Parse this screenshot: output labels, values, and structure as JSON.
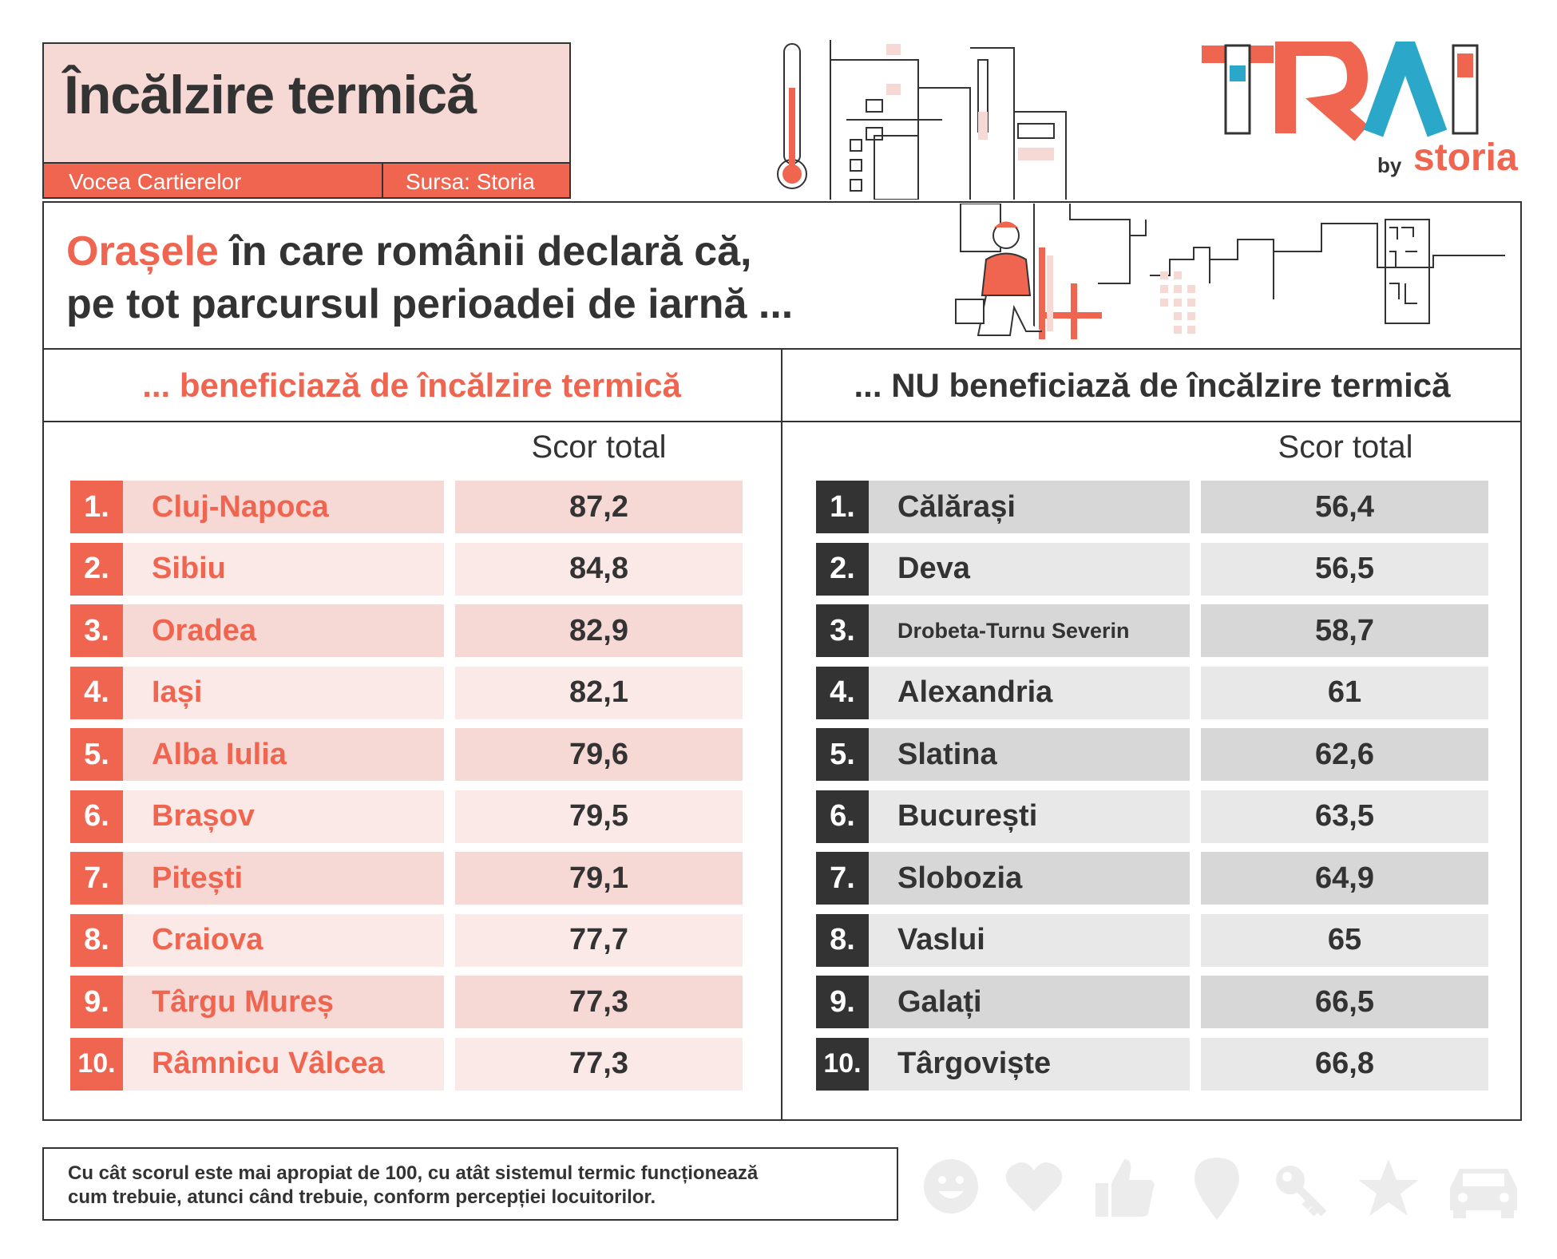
{
  "header": {
    "title": "Încălzire termică",
    "tag_left": "Vocea Cartierelor",
    "tag_right": "Sursa: Storia"
  },
  "logo": {
    "wordmark": "TRAI",
    "by": "by",
    "brand": "storia"
  },
  "headline": {
    "highlight": "Orașele",
    "line1_rest": " în care românii declară că,",
    "line2": "pe tot parcursul perioadei de iarnă ..."
  },
  "left_column": {
    "heading": "... beneficiază de încălzire termică",
    "score_header": "Scor total",
    "rows": [
      {
        "rank": "1.",
        "city": "Cluj-Napoca",
        "score": "87,2"
      },
      {
        "rank": "2.",
        "city": "Sibiu",
        "score": "84,8"
      },
      {
        "rank": "3.",
        "city": "Oradea",
        "score": "82,9"
      },
      {
        "rank": "4.",
        "city": "Iași",
        "score": "82,1"
      },
      {
        "rank": "5.",
        "city": "Alba Iulia",
        "score": "79,6"
      },
      {
        "rank": "6.",
        "city": "Brașov",
        "score": "79,5"
      },
      {
        "rank": "7.",
        "city": "Pitești",
        "score": "79,1"
      },
      {
        "rank": "8.",
        "city": "Craiova",
        "score": "77,7"
      },
      {
        "rank": "9.",
        "city": "Târgu Mureș",
        "score": "77,3"
      },
      {
        "rank": "10.",
        "city": "Râmnicu Vâlcea",
        "score": "77,3"
      }
    ]
  },
  "right_column": {
    "heading": "... NU beneficiază de încălzire termică",
    "score_header": "Scor total",
    "rows": [
      {
        "rank": "1.",
        "city": "Călărași",
        "score": "56,4"
      },
      {
        "rank": "2.",
        "city": "Deva",
        "score": "56,5"
      },
      {
        "rank": "3.",
        "city": "Drobeta-Turnu Severin",
        "score": "58,7"
      },
      {
        "rank": "4.",
        "city": "Alexandria",
        "score": "61"
      },
      {
        "rank": "5.",
        "city": "Slatina",
        "score": "62,6"
      },
      {
        "rank": "6.",
        "city": "București",
        "score": "63,5"
      },
      {
        "rank": "7.",
        "city": "Slobozia",
        "score": "64,9"
      },
      {
        "rank": "8.",
        "city": "Vaslui",
        "score": "65"
      },
      {
        "rank": "9.",
        "city": "Galați",
        "score": "66,5"
      },
      {
        "rank": "10.",
        "city": "Târgoviște",
        "score": "66,8"
      }
    ]
  },
  "footnote": {
    "line1": "Cu cât scorul este mai apropiat de 100, cu atât sistemul termic funcționează",
    "line2": "cum trebuie, atunci când trebuie, conform percepției locuitorilor."
  },
  "footer_icons": [
    "smiley-icon",
    "heart-icon",
    "thumbs-up-icon",
    "location-pin-icon",
    "key-icon",
    "star-icon",
    "car-icon"
  ],
  "colors": {
    "accent": "#ef6550",
    "accent_light": "#f6d8d5",
    "dark": "#333333",
    "gray": "#d7d7d7",
    "icon_gray": "#ececec"
  }
}
